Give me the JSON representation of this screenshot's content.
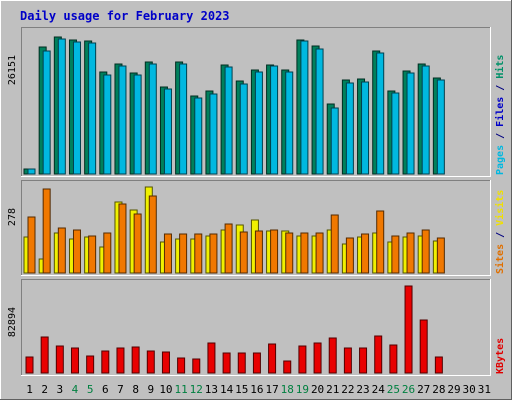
{
  "chart_data": {
    "type": "bar",
    "title": "Daily usage for February 2023",
    "days": [
      "1",
      "2",
      "3",
      "4",
      "5",
      "6",
      "7",
      "8",
      "9",
      "10",
      "11",
      "12",
      "13",
      "14",
      "15",
      "16",
      "17",
      "18",
      "19",
      "20",
      "21",
      "22",
      "23",
      "24",
      "25",
      "26",
      "27",
      "28",
      "29",
      "30",
      "31"
    ],
    "weekend_days": [
      "4",
      "5",
      "11",
      "12",
      "18",
      "19",
      "25",
      "26"
    ],
    "panels": [
      {
        "name": "hits-files-pages",
        "max_label": "26151",
        "max_value": 26151,
        "side_label_parts": [
          {
            "text": "Pages",
            "color": "#00b8e0"
          },
          {
            "text": " / ",
            "color": "#00007f"
          },
          {
            "text": "Files",
            "color": "#0000c8"
          },
          {
            "text": " / ",
            "color": "#00007f"
          },
          {
            "text": "Hits",
            "color": "#009068"
          }
        ],
        "series": [
          {
            "key": "hits",
            "color": "#00805c",
            "values": [
              1000,
              23800,
              25600,
              25000,
              24900,
              19000,
              20600,
              18900,
              21000,
              16200,
              21000,
              14500,
              15500,
              20300,
              17300,
              19500,
              20400,
              19500,
              25000,
              24000,
              13000,
              17500,
              17700,
              22900,
              15500,
              19200,
              20500,
              17900,
              null,
              null,
              null
            ]
          },
          {
            "key": "files",
            "color": "#00b8e0",
            "values": [
              900,
              22900,
              25300,
              24600,
              24500,
              18400,
              20200,
              18400,
              20600,
              15800,
              20600,
              14200,
              15000,
              19900,
              16900,
              19100,
              20100,
              19100,
              24800,
              23400,
              12400,
              17000,
              17200,
              22600,
              15200,
              18800,
              20200,
              17500,
              null,
              null,
              null
            ]
          }
        ]
      },
      {
        "name": "visits-sites",
        "max_label": "278",
        "max_value": 278,
        "side_label_parts": [
          {
            "text": "Sites",
            "color": "#e07000"
          },
          {
            "text": " / ",
            "color": "#00007f"
          },
          {
            "text": "Visits",
            "color": "#f0e000"
          }
        ],
        "series": [
          {
            "key": "visits",
            "color": "#f0f000",
            "values": [
              115,
              45,
              130,
              110,
              115,
              85,
              230,
              205,
              278,
              100,
              110,
              110,
              120,
              140,
              155,
              170,
              135,
              135,
              120,
              120,
              140,
              95,
              115,
              130,
              100,
              115,
              120,
              105,
              null,
              null,
              null
            ]
          },
          {
            "key": "sites",
            "color": "#f07800",
            "values": [
              182,
              272,
              146,
              140,
              120,
              128,
              222,
              190,
              248,
              125,
              125,
              125,
              125,
              160,
              133,
              135,
              140,
              130,
              128,
              130,
              188,
              112,
              125,
              200,
              118,
              128,
              140,
              112,
              null,
              null,
              null
            ]
          }
        ]
      },
      {
        "name": "kbytes",
        "max_label": "82894",
        "max_value": 82894,
        "side_label_parts": [
          {
            "text": "KBytes",
            "color": "#e00000"
          }
        ],
        "series": [
          {
            "key": "kbytes",
            "color": "#e80000",
            "values": [
              15200,
              34000,
              25700,
              23700,
              16500,
              21000,
              23700,
              24600,
              21100,
              20100,
              14000,
              13800,
              28200,
              19100,
              19100,
              19300,
              28000,
              11000,
              26000,
              29000,
              33000,
              23900,
              24100,
              35500,
              27000,
              82894,
              50300,
              15100,
              null,
              null,
              null
            ]
          }
        ]
      }
    ]
  }
}
